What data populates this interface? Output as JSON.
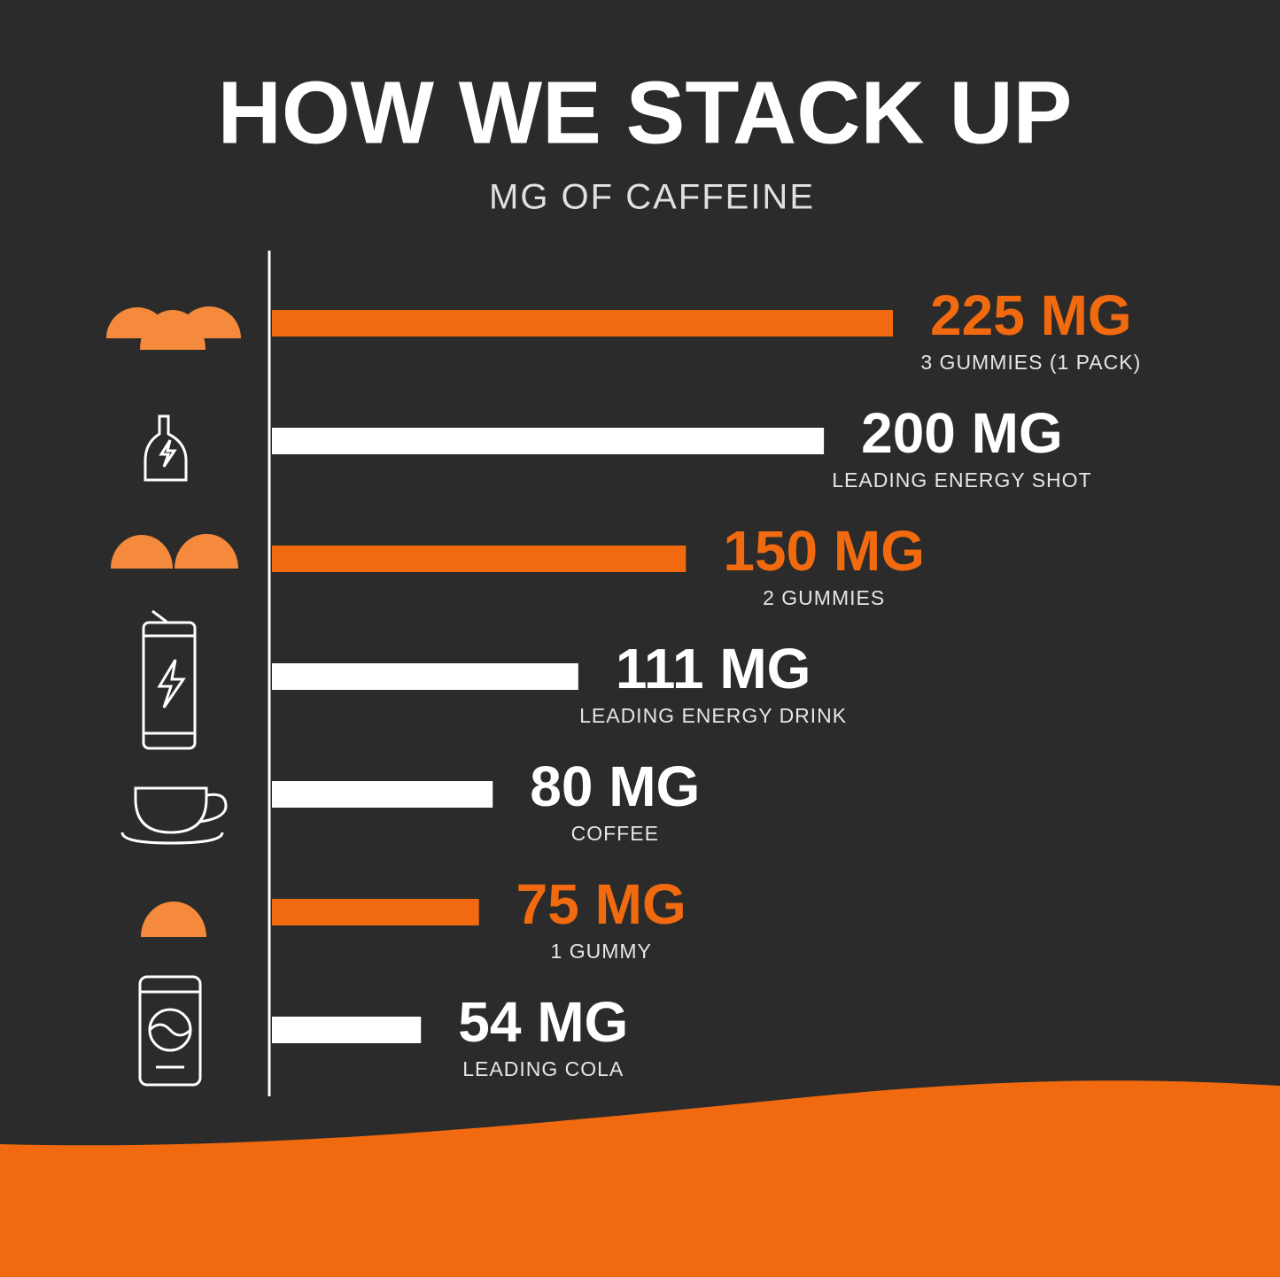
{
  "chart_data": {
    "type": "bar",
    "orientation": "horizontal",
    "title": "HOW WE STACK UP",
    "subtitle": "MG OF CAFFEINE",
    "categories": [
      "3 GUMMIES (1 PACK)",
      "LEADING ENERGY SHOT",
      "2 GUMMIES",
      "LEADING ENERGY DRINK",
      "COFFEE",
      "1 GUMMY",
      "LEADING COLA"
    ],
    "values": [
      225,
      200,
      150,
      111,
      80,
      75,
      54
    ],
    "value_labels": [
      "225 MG",
      "200 MG",
      "150 MG",
      "111 MG",
      "80 MG",
      "75 MG",
      "54 MG"
    ],
    "colors": [
      "#f26a0f",
      "#ffffff",
      "#f26a0f",
      "#ffffff",
      "#ffffff",
      "#f26a0f",
      "#ffffff"
    ],
    "xlim": [
      0,
      225
    ]
  }
}
